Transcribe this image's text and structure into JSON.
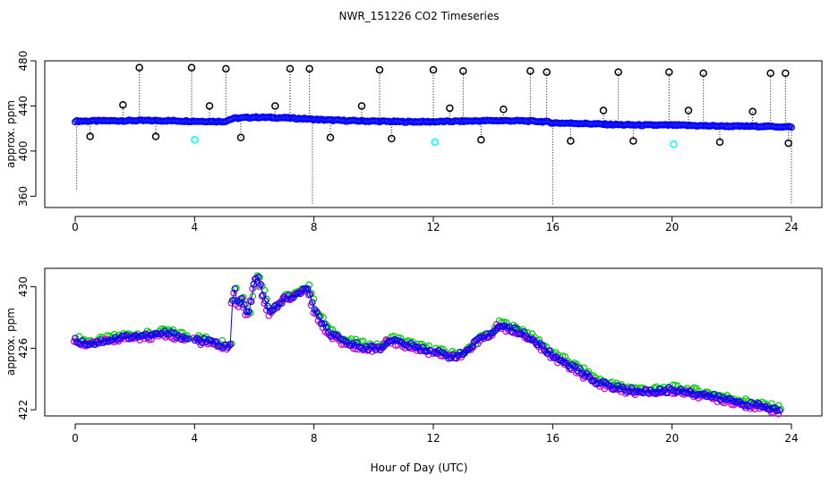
{
  "title": "NWR_151226  CO2 Timeseries",
  "xlabel": "Hour of Day (UTC)",
  "chart_data": [
    {
      "type": "scatter",
      "panel": "top",
      "ylabel": "approx. ppm",
      "xlim": [
        0,
        24
      ],
      "ylim": [
        350,
        480
      ],
      "xticks": [
        "0",
        "4",
        "8",
        "12",
        "16",
        "20",
        "24"
      ],
      "yticks": [
        "360",
        "400",
        "440",
        "480"
      ],
      "baseline": {
        "x": [
          0,
          1,
          2,
          3,
          4,
          5,
          5.3,
          6,
          7,
          7.8,
          8,
          9,
          10,
          11,
          12,
          13,
          14,
          15,
          15.8,
          16,
          17,
          18,
          19,
          20,
          21,
          22,
          23,
          23.8
        ],
        "y": [
          426.5,
          426.8,
          427,
          427,
          426.5,
          426.2,
          429,
          430,
          429.5,
          428.5,
          428,
          427,
          426.5,
          426,
          426,
          426.5,
          427,
          426.8,
          426,
          425,
          424.5,
          423.5,
          423,
          423,
          422.5,
          422,
          422,
          421.5
        ],
        "color": "#0000ff"
      },
      "spikes": {
        "x": [
          2.15,
          3.9,
          5.05,
          7.2,
          7.85,
          10.2,
          12,
          13,
          15.25,
          15.8,
          18.2,
          19.9,
          21.05,
          23.3,
          23.8,
          1.6,
          4.5,
          6.7,
          9.6,
          12.55,
          14.35,
          17.7,
          20.55,
          22.7,
          0.5,
          2.7,
          5.55,
          8.55,
          10.6,
          13.6,
          16.6,
          18.7,
          21.6,
          23.9
        ],
        "y": [
          474,
          474,
          473,
          473,
          473,
          472,
          472,
          471,
          471,
          470,
          470,
          470,
          469,
          469,
          469,
          441,
          440,
          440,
          440,
          438,
          437,
          436,
          436,
          435,
          413,
          413,
          412,
          412,
          411,
          410,
          409,
          409,
          408,
          407
        ],
        "color": "#000000"
      },
      "cyan_points": {
        "x": [
          4,
          12.05,
          20.05
        ],
        "y": [
          410,
          408,
          406
        ],
        "color": "#00ffff"
      },
      "down_spikes": {
        "x": [
          0.05,
          7.95,
          16,
          24
        ],
        "y": [
          365,
          352,
          352,
          353
        ]
      }
    },
    {
      "type": "line",
      "panel": "bottom",
      "ylabel": "approx. ppm",
      "xlim": [
        0,
        24
      ],
      "ylim": [
        421.6,
        431.2
      ],
      "xticks": [
        "0",
        "4",
        "8",
        "12",
        "16",
        "20",
        "24"
      ],
      "yticks": [
        "422",
        "426",
        "430"
      ],
      "series": [
        {
          "name": "CO2",
          "color": "#0000ff",
          "x": [
            0,
            0.5,
            1,
            1.5,
            2,
            2.5,
            3,
            3.5,
            3.8,
            4,
            4.5,
            5,
            5.2,
            5.3,
            5.45,
            5.6,
            5.8,
            5.95,
            6.1,
            6.3,
            6.5,
            7,
            7.5,
            7.8,
            8,
            8.5,
            9,
            9.5,
            10,
            10.3,
            10.5,
            11,
            11.5,
            12,
            12.5,
            13,
            13.5,
            14,
            14.2,
            14.5,
            15,
            15.5,
            16,
            16.5,
            17,
            17.5,
            18,
            18.5,
            19,
            19.5,
            20,
            20.5,
            21,
            21.5,
            22,
            22.5,
            23,
            23.5
          ],
          "y": [
            426.5,
            426.3,
            426.5,
            426.7,
            426.8,
            426.8,
            427,
            426.8,
            426.6,
            426.6,
            426.4,
            426.2,
            426.1,
            430.3,
            428.8,
            429.2,
            428,
            429.8,
            430.8,
            429.5,
            428.3,
            429.2,
            429.5,
            430,
            428.5,
            427,
            426.4,
            426.2,
            426,
            426,
            426.6,
            426.3,
            426,
            425.8,
            425.5,
            425.6,
            426.5,
            427,
            427.6,
            427.3,
            427,
            426.3,
            425.5,
            425,
            424.4,
            423.8,
            423.5,
            423.3,
            423.2,
            423.2,
            423.3,
            423.2,
            423,
            422.8,
            422.6,
            422.4,
            422.2,
            422
          ]
        }
      ]
    }
  ]
}
